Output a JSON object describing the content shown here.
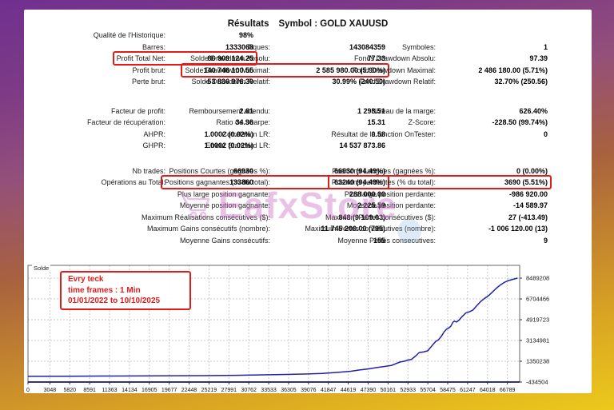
{
  "page": {
    "title": "Résultats",
    "subtitle": "Symbol : GOLD XAUUSD"
  },
  "colors": {
    "highlight_box": "#e21b1b",
    "curve": "#2121a8",
    "frame_top": "#70308f",
    "frame_bottom": "#ecc91c"
  },
  "watermark": {
    "text": "EafxStore"
  },
  "stats": {
    "left": [
      {
        "label": "Qualité de l'Historique:",
        "value": "98%"
      },
      {
        "label": "Barres:",
        "value": "1333068"
      },
      {
        "label": "Profit Total Net:",
        "value": "86 909 124.25",
        "boxed": true
      },
      {
        "label": "Profit brut:",
        "value": "140 746 100.55"
      },
      {
        "label": "Perte brut:",
        "value": "-53 836 976.30"
      },
      {
        "spacer": 22
      },
      {
        "label": "Facteur de profit:",
        "value": "2.61"
      },
      {
        "label": "Facteur de récupération:",
        "value": "34.96"
      },
      {
        "label": "AHPR:",
        "value": "1.0002 (0.02%)"
      },
      {
        "label": "GHPR:",
        "value": "1.0002 (0.02%)"
      },
      {
        "spacer": 17
      },
      {
        "label": "Nb trades:",
        "value": "66930"
      },
      {
        "label": "Opérations au Total:",
        "value": "133860"
      }
    ],
    "middle": [
      {
        "label": "",
        "value": ""
      },
      {
        "label": "Tiques:",
        "value": "143084359"
      },
      {
        "label": "Solde Drawdown Absolu:",
        "value": "77.33"
      },
      {
        "label": "Solde Drawdown Maximal:",
        "value": "2 585 980.00 (5.90%)",
        "boxed": true
      },
      {
        "label": "Solde Drawdown Relatif:",
        "value": "30.99% (240.50)"
      },
      {
        "spacer": 22
      },
      {
        "label": "Remboursement attendu:",
        "value": "1 298.51"
      },
      {
        "label": "Ratio de Sharpe:",
        "value": "15.31"
      },
      {
        "label": "Corrélation LR:",
        "value": "0.58"
      },
      {
        "label": "Erreur Standard LR:",
        "value": "14 537 873.86"
      },
      {
        "spacer": 17
      },
      {
        "label": "Positions Courtes (gagnées %):",
        "value": "66930 (94.49%)"
      },
      {
        "label": "Positions gagnantes (% du total):",
        "value": "63240 (94.49%)",
        "boxed": true
      },
      {
        "label": "Plus large position gagnante:",
        "value": "288 000.00"
      },
      {
        "label": "Moyenne position gagnante:",
        "value": "2 225.59"
      },
      {
        "label": "Maximum Réalisations consécutives ($):",
        "value": "848 (9 109.03)"
      },
      {
        "label": "Maximum Gains consécutifs (nombre):",
        "value": "11 745 200.00 (795)"
      },
      {
        "label": "Moyenne Gains consécutifs:",
        "value": "155"
      }
    ],
    "right": [
      {
        "label": "",
        "value": ""
      },
      {
        "label": "Symboles:",
        "value": "1"
      },
      {
        "label": "Fonds Drawdown Absolu:",
        "value": "97.39"
      },
      {
        "label": "Fond Drawdown Maximal:",
        "value": "2 486 180.00 (5.71%)"
      },
      {
        "label": "Fond Drawdown Relatif:",
        "value": "32.70% (250.56)"
      },
      {
        "spacer": 22
      },
      {
        "label": "Niveau de la marge:",
        "value": "626.40%"
      },
      {
        "label": "Z-Score:",
        "value": "-228.50 (99.74%)"
      },
      {
        "label": "Résultat de la fonction OnTester:",
        "value": "0"
      },
      {
        "label": "",
        "value": ""
      },
      {
        "spacer": 17
      },
      {
        "label": "Positions Longues (gagnées %):",
        "value": "0 (0.00%)"
      },
      {
        "label": "Positions perdantes (% du total):",
        "value": "3690 (5.51%)",
        "boxed": true
      },
      {
        "label": "Plus large position perdante:",
        "value": "-986 920.00"
      },
      {
        "label": "Moyenne position perdante:",
        "value": "-14 589.97"
      },
      {
        "label": "Maximum Pertes consécutives ($):",
        "value": "27 (-413.49)"
      },
      {
        "label": "Maximum Pertes consécutives (nombre):",
        "value": "-1 006 120.00 (13)"
      },
      {
        "label": "Moyenne Pertes consecutives:",
        "value": "9"
      }
    ]
  },
  "chart_data": {
    "type": "line",
    "title": "Solde",
    "annotation": [
      "Evry teck",
      "time frames : 1 Min",
      "01/01/2022 to 10/10/2025"
    ],
    "x_ticks": [
      0,
      3048,
      5820,
      8591,
      11363,
      14134,
      16905,
      19677,
      22448,
      25219,
      27991,
      30762,
      33533,
      36305,
      39076,
      41847,
      44619,
      47390,
      50161,
      52933,
      55704,
      58475,
      61247,
      64018,
      66789
    ],
    "y_ticks": [
      8489208,
      6704466,
      4919723,
      3134981,
      1350238,
      -434504
    ],
    "xlim": [
      0,
      68500
    ],
    "ylim": [
      -434504,
      9590000
    ],
    "grid": true,
    "legend_position": "none",
    "series": [
      {
        "name": "Solde",
        "points": [
          [
            0,
            50000
          ],
          [
            6000,
            65000
          ],
          [
            12000,
            80000
          ],
          [
            18000,
            95000
          ],
          [
            24000,
            115000
          ],
          [
            29000,
            145000
          ],
          [
            32000,
            180000
          ],
          [
            36000,
            215000
          ],
          [
            38500,
            250000
          ],
          [
            41000,
            310000
          ],
          [
            43000,
            390000
          ],
          [
            45000,
            490000
          ],
          [
            46200,
            600000
          ],
          [
            47500,
            700000
          ],
          [
            48500,
            800000
          ],
          [
            49600,
            900000
          ],
          [
            50700,
            1000000
          ],
          [
            51800,
            1280000
          ],
          [
            52400,
            1350000
          ],
          [
            52900,
            1450000
          ],
          [
            53400,
            1500000
          ],
          [
            54000,
            1800000
          ],
          [
            54500,
            2100000
          ],
          [
            55100,
            2150000
          ],
          [
            55700,
            2250000
          ],
          [
            56300,
            2700000
          ],
          [
            56800,
            3050000
          ],
          [
            57200,
            3200000
          ],
          [
            57600,
            3500000
          ],
          [
            58000,
            3900000
          ],
          [
            58300,
            4100000
          ],
          [
            58600,
            4200000
          ],
          [
            58900,
            4350000
          ],
          [
            59200,
            4700000
          ],
          [
            59400,
            4800000
          ],
          [
            59700,
            4720000
          ],
          [
            60000,
            4850000
          ],
          [
            60500,
            5200000
          ],
          [
            61000,
            5500000
          ],
          [
            61500,
            5600000
          ],
          [
            62000,
            5750000
          ],
          [
            62500,
            6100000
          ],
          [
            63100,
            6500000
          ],
          [
            63600,
            6750000
          ],
          [
            64200,
            7000000
          ],
          [
            64700,
            7300000
          ],
          [
            65200,
            7600000
          ],
          [
            65800,
            7900000
          ],
          [
            66300,
            8100000
          ],
          [
            66800,
            8250000
          ],
          [
            67300,
            8350000
          ],
          [
            68200,
            8489208
          ]
        ]
      }
    ]
  }
}
